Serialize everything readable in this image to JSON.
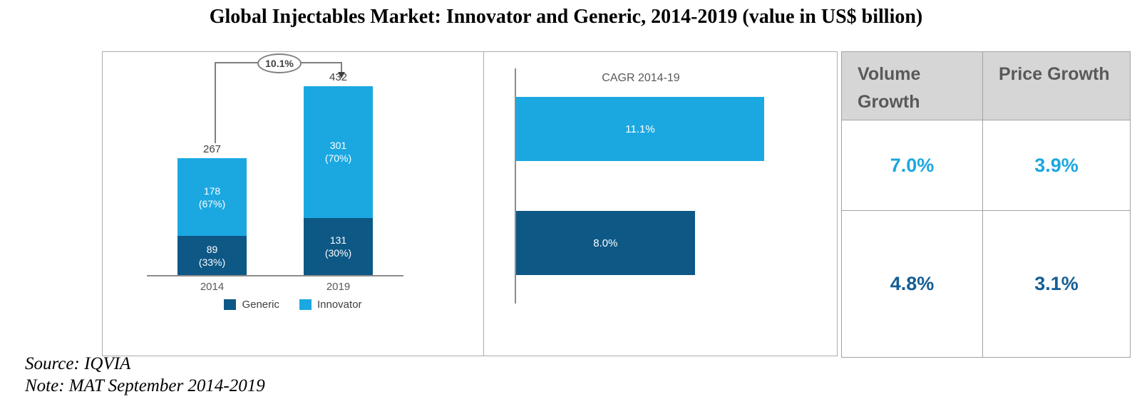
{
  "title": "Global Injectables Market: Innovator and Generic, 2014-2019 (value in US$ billion)",
  "source": "Source: IQVIA",
  "note": "Note: MAT September 2014-2019",
  "colors": {
    "innovator": "#1BA8E1",
    "generic": "#0E5886",
    "table_row1": "#1BA7E0",
    "table_row2": "#145E96",
    "header_bg": "#D6D6D6",
    "header_text": "#595959"
  },
  "chart_data": [
    {
      "type": "bar",
      "subtype": "stacked-column",
      "categories": [
        "2014",
        "2019"
      ],
      "series": [
        {
          "name": "Generic",
          "color": "#0E5886",
          "values": [
            89,
            131
          ],
          "pct": [
            "(33%)",
            "(30%)"
          ]
        },
        {
          "name": "Innovator",
          "color": "#1BA8E1",
          "values": [
            178,
            301
          ],
          "pct": [
            "(67%)",
            "(70%)"
          ]
        }
      ],
      "totals": [
        267,
        432
      ],
      "cagr_annotation": "10.1%",
      "legend_position": "bottom",
      "ylim": [
        0,
        432
      ]
    },
    {
      "type": "bar",
      "subtype": "horizontal",
      "title": "CAGR 2014-19",
      "categories": [
        "Innovator",
        "Generic"
      ],
      "values": [
        11.1,
        8.0
      ],
      "labels": [
        "11.1%",
        "8.0%"
      ],
      "colors": [
        "#1BA8E1",
        "#0E5886"
      ],
      "xlim": [
        0,
        11.1
      ]
    },
    {
      "type": "table",
      "columns": [
        "Volume Growth",
        "Price Growth"
      ],
      "rows": [
        {
          "cells": [
            "7.0%",
            "3.9%"
          ],
          "color": "#1BA7E0"
        },
        {
          "cells": [
            "4.8%",
            "3.1%"
          ],
          "color": "#145E96"
        }
      ]
    }
  ]
}
